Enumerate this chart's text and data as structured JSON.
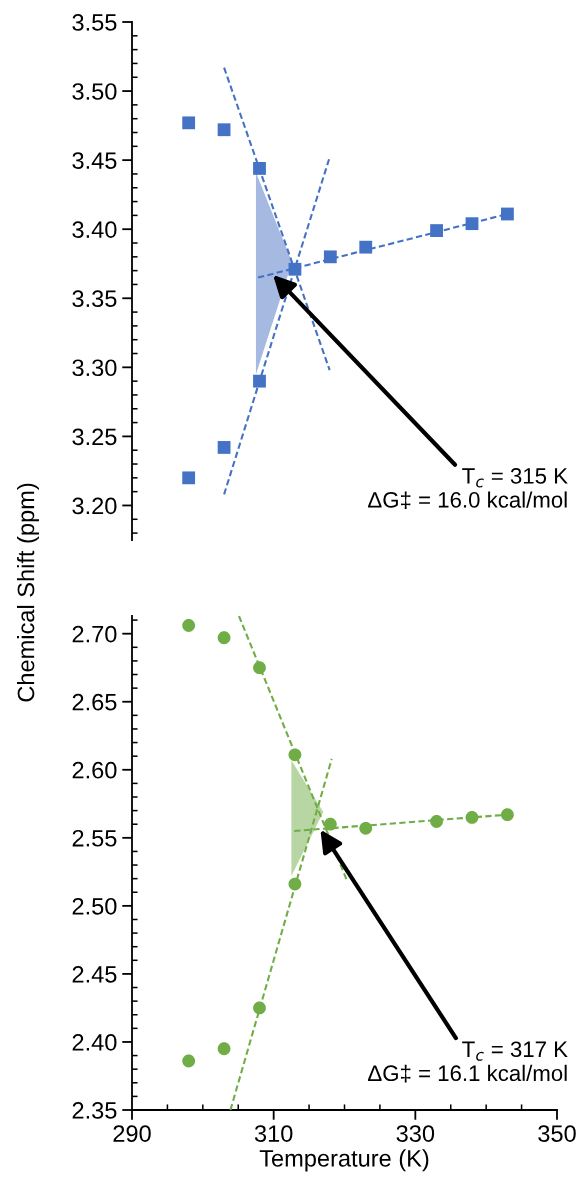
{
  "chart_data": [
    {
      "type": "scatter",
      "ylabel": "Chemical Shift (ppm)",
      "xlim": [
        290,
        350
      ],
      "ylim": [
        3.175,
        3.55
      ],
      "yticks": [
        {
          "value": 3.2,
          "label": "3.20"
        },
        {
          "value": 3.25,
          "label": "3.25"
        },
        {
          "value": 3.3,
          "label": "3.30"
        },
        {
          "value": 3.35,
          "label": "3.35"
        },
        {
          "value": 3.4,
          "label": "3.40"
        },
        {
          "value": 3.45,
          "label": "3.45"
        },
        {
          "value": 3.5,
          "label": "3.50"
        },
        {
          "value": 3.55,
          "label": "3.55"
        }
      ],
      "tick_labels": "y",
      "grid": false,
      "legend": false,
      "series": [
        {
          "type": "area",
          "color": "#a6b9e1",
          "x": [
            307.5,
            312.6
          ],
          "values": [
            null,
            null
          ],
          "lower": [
            3.295,
            3.376
          ],
          "upper": [
            3.441,
            3.376
          ]
        },
        {
          "color": "#4472c4",
          "marker": "square",
          "x": [
            298,
            303,
            308,
            308,
            303,
            298,
            313,
            318,
            323,
            333,
            338,
            343
          ],
          "values": [
            3.477,
            3.472,
            3.444,
            3.29,
            3.242,
            3.22,
            3.371,
            3.38,
            3.387,
            3.399,
            3.404,
            3.411
          ]
        },
        {
          "type": "line",
          "color": "#4472c4",
          "line_style": "dashed",
          "marker": "none",
          "x": [
            303,
            317.9
          ],
          "values": [
            3.517,
            3.298
          ]
        },
        {
          "type": "line",
          "color": "#4472c4",
          "line_style": "dashed",
          "marker": "none",
          "x": [
            303,
            317.9
          ],
          "values": [
            3.208,
            3.452
          ]
        },
        {
          "type": "line",
          "color": "#4472c4",
          "line_style": "dashed",
          "marker": "none",
          "x": [
            307.8,
            343
          ],
          "values": [
            3.365,
            3.411
          ]
        }
      ],
      "annotations": [
        {
          "text": "T$_{c}$ = 315 K\nΔG‡ = 16.0 kcal/mol",
          "x": 309.9,
          "y": 3.367
        }
      ]
    },
    {
      "type": "scatter",
      "xlabel": "Temperature (K)",
      "xlim": [
        290,
        350
      ],
      "xticks": [
        290,
        310,
        330,
        350
      ],
      "ylim": [
        2.35,
        2.713
      ],
      "yticks": [
        {
          "value": 2.35,
          "label": "2.35"
        },
        {
          "value": 2.4,
          "label": "2.40"
        },
        {
          "value": 2.45,
          "label": "2.45"
        },
        {
          "value": 2.5,
          "label": "2.50"
        },
        {
          "value": 2.55,
          "label": "2.55"
        },
        {
          "value": 2.6,
          "label": "2.60"
        },
        {
          "value": 2.65,
          "label": "2.65"
        },
        {
          "value": 2.7,
          "label": "2.70"
        }
      ],
      "grid": false,
      "legend": false,
      "series": [
        {
          "type": "area",
          "color": "#b7d6a3",
          "x": [
            312.5,
            317.0
          ],
          "values": [
            null,
            null
          ],
          "lower": [
            2.522,
            2.569
          ],
          "upper": [
            2.607,
            2.569
          ]
        },
        {
          "color": "#70ad47",
          "marker": "circle",
          "x": [
            298,
            303,
            308,
            313,
            313,
            318,
            323,
            333,
            338,
            343,
            308,
            303,
            298
          ],
          "values": [
            2.706,
            2.697,
            2.675,
            2.611,
            2.516,
            2.56,
            2.557,
            2.562,
            2.565,
            2.567,
            2.425,
            2.395,
            2.386
          ]
        },
        {
          "type": "line",
          "color": "#70ad47",
          "line_style": "dashed",
          "marker": "none",
          "x": [
            305.1,
            320.4
          ],
          "values": [
            2.713,
            2.518
          ]
        },
        {
          "type": "line",
          "color": "#70ad47",
          "line_style": "dashed",
          "marker": "none",
          "x": [
            303.9,
            318.2
          ],
          "values": [
            2.35,
            2.608
          ]
        },
        {
          "type": "line",
          "color": "#70ad47",
          "line_style": "dashed",
          "marker": "none",
          "x": [
            312.9,
            343
          ],
          "values": [
            2.555,
            2.567
          ]
        }
      ],
      "annotations": [
        {
          "text": "T$_{c}$ = 317 K\nΔG‡ = 16.1 kcal/mol",
          "x": 316.6,
          "y": 2.556
        }
      ]
    }
  ]
}
